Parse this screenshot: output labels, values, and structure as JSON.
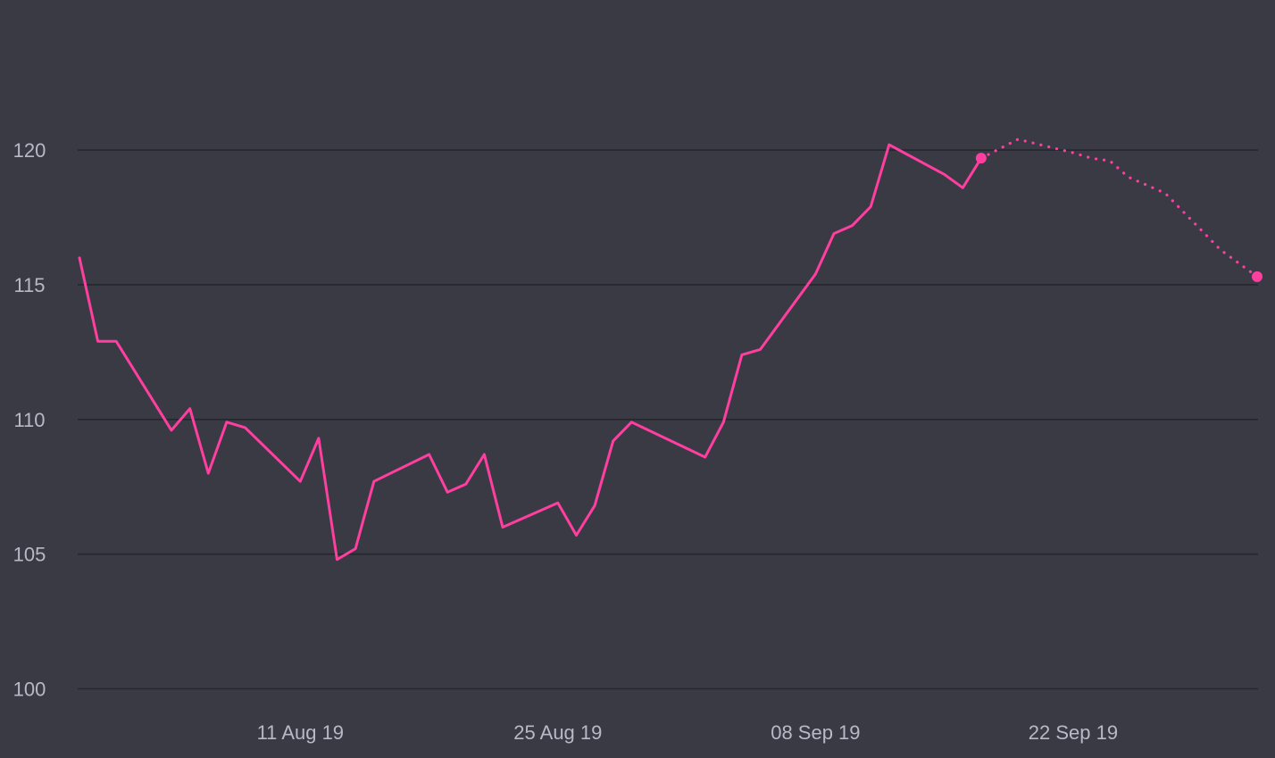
{
  "chart_data": {
    "type": "line",
    "title": "",
    "xlabel": "",
    "ylabel": "",
    "ylim": [
      100,
      124
    ],
    "xlim": [
      "2019-07-30",
      "2019-10-02"
    ],
    "grid": true,
    "line_color": "#ff3fa0",
    "background_color": "#3a3a45",
    "y_ticks": [
      100,
      105,
      110,
      115,
      120
    ],
    "x_ticks": [
      {
        "date": "2019-08-11",
        "label": "11 Aug 19"
      },
      {
        "date": "2019-08-25",
        "label": "25 Aug 19"
      },
      {
        "date": "2019-09-08",
        "label": "08 Sep 19"
      },
      {
        "date": "2019-09-22",
        "label": "22 Sep 19"
      }
    ],
    "series": [
      {
        "style": "solid",
        "points": [
          {
            "x": "2019-07-30",
            "y": 116.0
          },
          {
            "x": "2019-07-31",
            "y": 112.9
          },
          {
            "x": "2019-08-01",
            "y": 112.9
          },
          {
            "x": "2019-08-04",
            "y": 109.6
          },
          {
            "x": "2019-08-05",
            "y": 110.4
          },
          {
            "x": "2019-08-06",
            "y": 108.0
          },
          {
            "x": "2019-08-07",
            "y": 109.9
          },
          {
            "x": "2019-08-08",
            "y": 109.7
          },
          {
            "x": "2019-08-11",
            "y": 107.7
          },
          {
            "x": "2019-08-12",
            "y": 109.3
          },
          {
            "x": "2019-08-13",
            "y": 104.8
          },
          {
            "x": "2019-08-14",
            "y": 105.2
          },
          {
            "x": "2019-08-15",
            "y": 107.7
          },
          {
            "x": "2019-08-18",
            "y": 108.7
          },
          {
            "x": "2019-08-19",
            "y": 107.3
          },
          {
            "x": "2019-08-20",
            "y": 107.6
          },
          {
            "x": "2019-08-21",
            "y": 108.7
          },
          {
            "x": "2019-08-22",
            "y": 106.0
          },
          {
            "x": "2019-08-25",
            "y": 106.9
          },
          {
            "x": "2019-08-26",
            "y": 105.7
          },
          {
            "x": "2019-08-27",
            "y": 106.8
          },
          {
            "x": "2019-08-28",
            "y": 109.2
          },
          {
            "x": "2019-08-29",
            "y": 109.9
          },
          {
            "x": "2019-09-02",
            "y": 108.6
          },
          {
            "x": "2019-09-03",
            "y": 109.9
          },
          {
            "x": "2019-09-04",
            "y": 112.4
          },
          {
            "x": "2019-09-05",
            "y": 112.6
          },
          {
            "x": "2019-09-08",
            "y": 115.4
          },
          {
            "x": "2019-09-09",
            "y": 116.9
          },
          {
            "x": "2019-09-10",
            "y": 117.2
          },
          {
            "x": "2019-09-11",
            "y": 117.9
          },
          {
            "x": "2019-09-12",
            "y": 120.2
          },
          {
            "x": "2019-09-15",
            "y": 119.1
          },
          {
            "x": "2019-09-16",
            "y": 118.6
          },
          {
            "x": "2019-09-17",
            "y": 119.7
          }
        ]
      },
      {
        "style": "dotted",
        "points": [
          {
            "x": "2019-09-17",
            "y": 119.7
          },
          {
            "x": "2019-09-19",
            "y": 120.4
          },
          {
            "x": "2019-09-22",
            "y": 119.9
          },
          {
            "x": "2019-09-23",
            "y": 119.7
          },
          {
            "x": "2019-09-24",
            "y": 119.6
          },
          {
            "x": "2019-09-25",
            "y": 119.0
          },
          {
            "x": "2019-09-26",
            "y": 118.7
          },
          {
            "x": "2019-09-27",
            "y": 118.4
          },
          {
            "x": "2019-09-30",
            "y": 116.3
          },
          {
            "x": "2019-10-02",
            "y": 115.3
          }
        ]
      }
    ],
    "markers": [
      {
        "x": "2019-09-17",
        "y": 119.7
      },
      {
        "x": "2019-10-02",
        "y": 115.3
      }
    ]
  }
}
